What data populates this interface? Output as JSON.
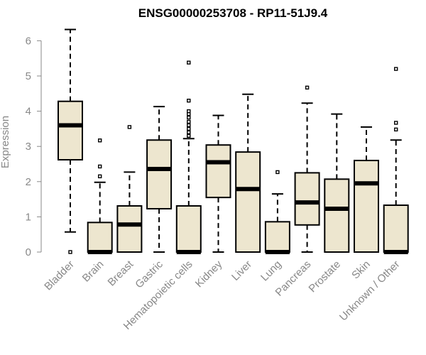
{
  "chart_data": {
    "type": "box",
    "title": "ENSG00000253708 - RP11-51J9.4",
    "ylabel": "Expression",
    "xlabel": "",
    "ylim": [
      0,
      6.3
    ],
    "yticks": [
      0,
      1,
      2,
      3,
      4,
      5,
      6
    ],
    "grid": false,
    "colors": {
      "box_fill": "#ede6cf",
      "box_stroke": "#000000",
      "axis_text": "#888888"
    },
    "categories": [
      "Bladder",
      "Brain",
      "Breast",
      "Gastric",
      "Hematopoietic cells",
      "Kidney",
      "Liver",
      "Lung",
      "Pancreas",
      "Prostate",
      "Skin",
      "Unknown / Other"
    ],
    "boxes": [
      {
        "q1": 2.62,
        "median": 3.6,
        "q3": 4.28,
        "whisker_low": 0.57,
        "whisker_high": 6.32,
        "outliers": [
          0.0
        ]
      },
      {
        "q1": 0.0,
        "median": 0.0,
        "q3": 0.84,
        "whisker_low": 0.0,
        "whisker_high": 1.98,
        "outliers": [
          2.15,
          2.43,
          3.17
        ]
      },
      {
        "q1": 0.0,
        "median": 0.78,
        "q3": 1.31,
        "whisker_low": 0.0,
        "whisker_high": 2.27,
        "outliers": [
          3.55
        ]
      },
      {
        "q1": 1.23,
        "median": 2.36,
        "q3": 3.18,
        "whisker_low": 0.0,
        "whisker_high": 4.13,
        "outliers": []
      },
      {
        "q1": 0.0,
        "median": 0.0,
        "q3": 1.31,
        "whisker_low": 0.0,
        "whisker_high": 3.22,
        "outliers": [
          3.3,
          3.4,
          3.5,
          3.6,
          3.7,
          3.82,
          3.92,
          4.0,
          4.3,
          5.38
        ]
      },
      {
        "q1": 1.55,
        "median": 2.55,
        "q3": 3.04,
        "whisker_low": 0.0,
        "whisker_high": 3.88,
        "outliers": []
      },
      {
        "q1": 0.0,
        "median": 1.79,
        "q3": 2.84,
        "whisker_low": 0.0,
        "whisker_high": 4.48,
        "outliers": []
      },
      {
        "q1": 0.0,
        "median": 0.0,
        "q3": 0.86,
        "whisker_low": 0.0,
        "whisker_high": 1.65,
        "outliers": [
          2.27
        ]
      },
      {
        "q1": 0.77,
        "median": 1.41,
        "q3": 2.25,
        "whisker_low": 0.0,
        "whisker_high": 4.23,
        "outliers": [
          4.67
        ]
      },
      {
        "q1": 0.0,
        "median": 1.23,
        "q3": 2.07,
        "whisker_low": 0.0,
        "whisker_high": 3.92,
        "outliers": []
      },
      {
        "q1": 0.0,
        "median": 1.95,
        "q3": 2.6,
        "whisker_low": 0.0,
        "whisker_high": 3.55,
        "outliers": []
      },
      {
        "q1": 0.0,
        "median": 0.0,
        "q3": 1.33,
        "whisker_low": 0.0,
        "whisker_high": 3.18,
        "outliers": [
          3.48,
          3.67,
          5.2
        ]
      }
    ]
  }
}
